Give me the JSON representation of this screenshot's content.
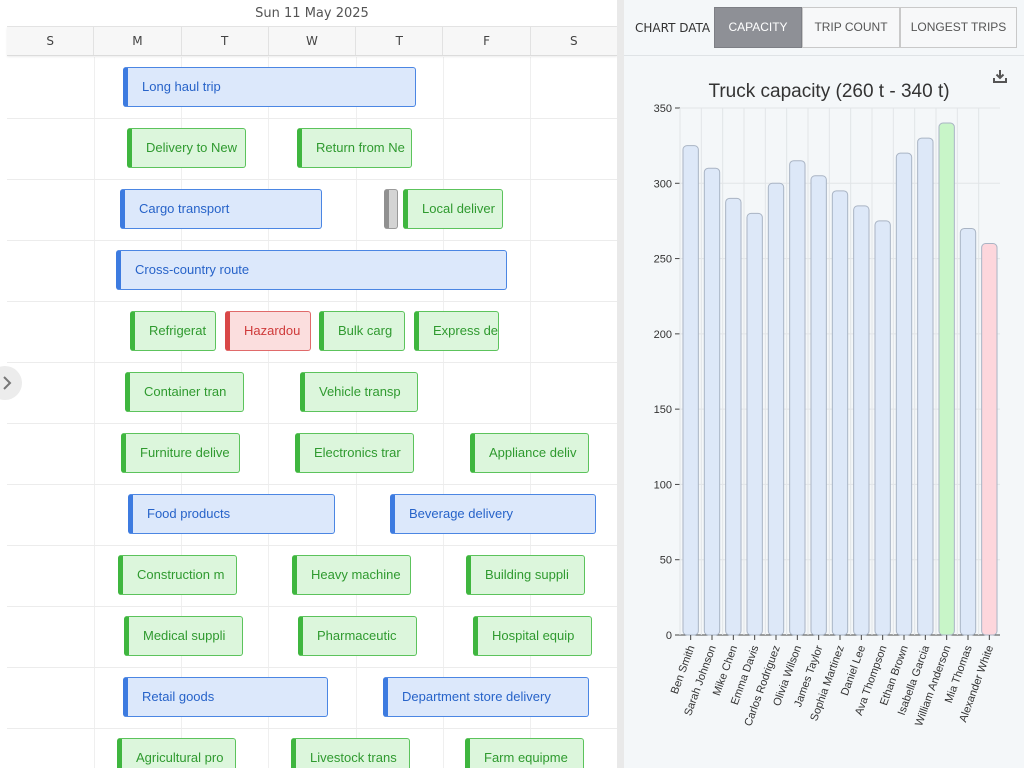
{
  "calendar": {
    "date_label": "Sun 11 May 2025",
    "days": [
      "S",
      "M",
      "T",
      "W",
      "T",
      "F",
      "S"
    ],
    "rows": [
      [
        {
          "label": "Long haul trip",
          "color": "blue"
        }
      ],
      [
        {
          "label": "Delivery to New",
          "color": "green"
        },
        {
          "label": "Return from Ne",
          "color": "green"
        }
      ],
      [
        {
          "label": "Cargo transport",
          "color": "blue"
        },
        {
          "label": "",
          "color": "gray"
        },
        {
          "label": "Local deliver",
          "color": "green"
        }
      ],
      [
        {
          "label": "Cross-country route",
          "color": "blue"
        }
      ],
      [
        {
          "label": "Refrigerat",
          "color": "green"
        },
        {
          "label": "Hazardou",
          "color": "red"
        },
        {
          "label": "Bulk carg",
          "color": "green"
        },
        {
          "label": "Express de",
          "color": "green"
        }
      ],
      [
        {
          "label": "Container tran",
          "color": "green"
        },
        {
          "label": "Vehicle transp",
          "color": "green"
        }
      ],
      [
        {
          "label": "Furniture delive",
          "color": "green"
        },
        {
          "label": "Electronics trar",
          "color": "green"
        },
        {
          "label": "Appliance deliv",
          "color": "green"
        }
      ],
      [
        {
          "label": "Food products",
          "color": "blue"
        },
        {
          "label": "Beverage delivery",
          "color": "blue"
        }
      ],
      [
        {
          "label": "Construction m",
          "color": "green"
        },
        {
          "label": "Heavy machine",
          "color": "green"
        },
        {
          "label": "Building suppli",
          "color": "green"
        }
      ],
      [
        {
          "label": "Medical suppli",
          "color": "green"
        },
        {
          "label": "Pharmaceutic",
          "color": "green"
        },
        {
          "label": "Hospital equip",
          "color": "green"
        }
      ],
      [
        {
          "label": "Retail goods",
          "color": "blue"
        },
        {
          "label": "Department store delivery",
          "color": "blue"
        }
      ],
      [
        {
          "label": "Agricultural pro",
          "color": "green"
        },
        {
          "label": "Livestock trans",
          "color": "green"
        },
        {
          "label": "Farm equipme",
          "color": "green"
        }
      ]
    ]
  },
  "panel": {
    "tab_label": "CHART DATA",
    "tabs": [
      {
        "label": "CAPACITY",
        "active": true
      },
      {
        "label": "TRIP COUNT",
        "active": false
      },
      {
        "label": "LONGEST TRIPS",
        "active": false
      }
    ],
    "download_icon": "download-icon"
  },
  "chart_data": {
    "type": "bar",
    "title": "Truck capacity (260 t - 340 t)",
    "xlabel": "",
    "ylabel": "",
    "ylim": [
      0,
      350
    ],
    "yticks": [
      0,
      50,
      100,
      150,
      200,
      250,
      300,
      350
    ],
    "grid": true,
    "categories": [
      "Ben Smith",
      "Sarah Johnson",
      "Mike Chen",
      "Emma Davis",
      "Carlos Rodriguez",
      "Olivia Wilson",
      "James Taylor",
      "Sophia Martinez",
      "Daniel Lee",
      "Ava Thompson",
      "Ethan Brown",
      "Isabella Garcia",
      "William Anderson",
      "Mia Thomas",
      "Alexander White"
    ],
    "values": [
      325,
      310,
      290,
      280,
      300,
      315,
      305,
      295,
      285,
      275,
      320,
      330,
      340,
      270,
      260
    ],
    "bar_colors": [
      "#dde8f8",
      "#dde8f8",
      "#dde8f8",
      "#dde8f8",
      "#dde8f8",
      "#dde8f8",
      "#dde8f8",
      "#dde8f8",
      "#dde8f8",
      "#dde8f8",
      "#dde8f8",
      "#dde8f8",
      "#c8f5c8",
      "#dde8f8",
      "#fdd6dc"
    ]
  }
}
